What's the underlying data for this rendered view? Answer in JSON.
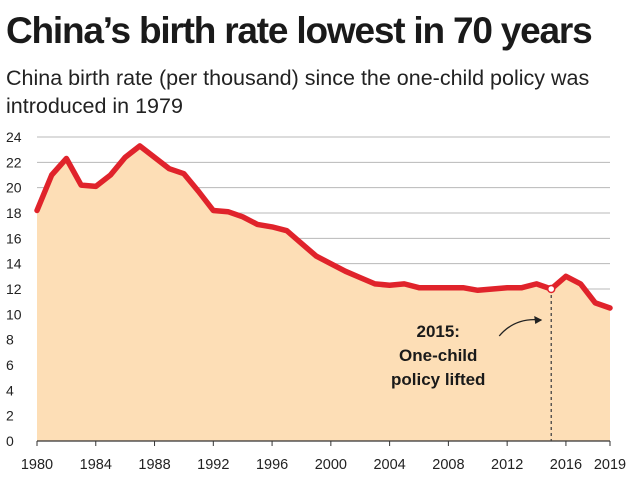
{
  "header": {
    "title": "China’s birth rate lowest in 70 years",
    "subtitle": "China birth rate (per thousand) since the one-child policy was introduced in 1979"
  },
  "colors": {
    "line": "#e0232b",
    "fill": "#fddeb6",
    "grid": "#b8b8b8",
    "axis": "#333333",
    "text": "#222222"
  },
  "chart_data": {
    "type": "area",
    "x": [
      1980,
      1981,
      1982,
      1983,
      1984,
      1985,
      1986,
      1987,
      1988,
      1989,
      1990,
      1991,
      1992,
      1993,
      1994,
      1995,
      1996,
      1997,
      1998,
      1999,
      2000,
      2001,
      2002,
      2003,
      2004,
      2005,
      2006,
      2007,
      2008,
      2009,
      2010,
      2011,
      2012,
      2013,
      2014,
      2015,
      2016,
      2017,
      2018,
      2019
    ],
    "series": [
      {
        "values": [
          18.2,
          21.0,
          22.3,
          20.2,
          20.1,
          21.0,
          22.4,
          23.3,
          22.4,
          21.5,
          21.1,
          19.7,
          18.2,
          18.1,
          17.7,
          17.1,
          16.9,
          16.6,
          15.6,
          14.6,
          14.0,
          13.4,
          12.9,
          12.4,
          12.3,
          12.4,
          12.1,
          12.1,
          12.1,
          12.1,
          11.9,
          12.0,
          12.1,
          12.1,
          12.4,
          12.0,
          13.0,
          12.4,
          10.9,
          10.5
        ]
      }
    ],
    "xlabel": "",
    "ylabel": "",
    "ylim": [
      0,
      24
    ],
    "xlim": [
      1980,
      2019
    ],
    "y_ticks": [
      0,
      2,
      4,
      6,
      8,
      10,
      12,
      14,
      16,
      18,
      20,
      22,
      24
    ],
    "x_ticks": [
      1980,
      1984,
      1988,
      1992,
      1996,
      2000,
      2004,
      2008,
      2012,
      2016,
      2019
    ],
    "grid": true,
    "legend": "none",
    "annotations": [
      {
        "year": 2015,
        "value": 12.0,
        "lines": [
          "2015:",
          "One-child",
          "policy lifted"
        ]
      }
    ]
  }
}
